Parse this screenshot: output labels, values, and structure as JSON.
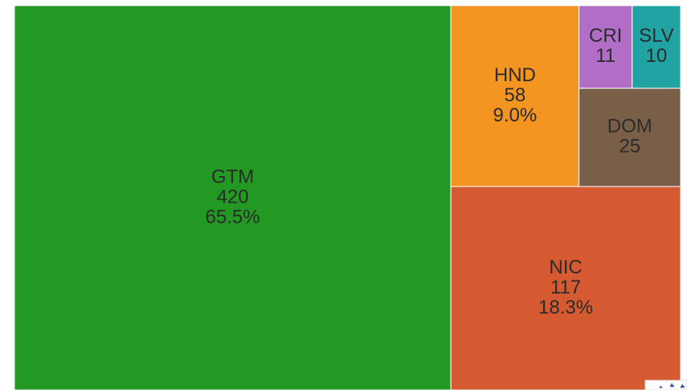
{
  "chart_data": {
    "type": "treemap",
    "categories": [
      "GTM",
      "NIC",
      "HND",
      "DOM",
      "CRI",
      "SLV"
    ],
    "values": [
      420,
      117,
      58,
      25,
      11,
      10
    ],
    "percent_labels": [
      "65.5%",
      "18.3%",
      "9.0%",
      null,
      null,
      null
    ],
    "colors": [
      "#229922",
      "#d65a31",
      "#f39520",
      "#7a5f48",
      "#b26ec6",
      "#21a3a3"
    ]
  }
}
